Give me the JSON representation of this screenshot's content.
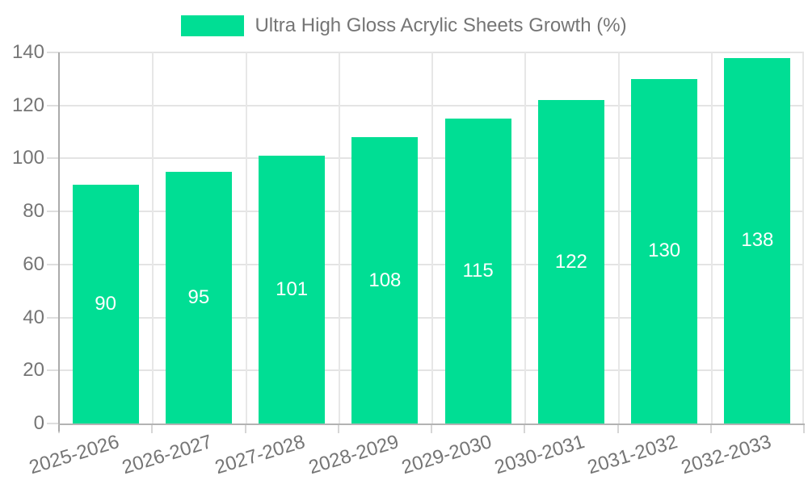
{
  "legend": {
    "label": "Ultra High Gloss Acrylic Sheets Growth (%)"
  },
  "chart_data": {
    "type": "bar",
    "title": "Ultra High Gloss Acrylic Sheets Growth (%)",
    "series_name": "Ultra High Gloss Acrylic Sheets Growth (%)",
    "categories": [
      "2025-2026",
      "2026-2027",
      "2027-2028",
      "2028-2029",
      "2029-2030",
      "2030-2031",
      "2031-2032",
      "2032-2033"
    ],
    "values": [
      90,
      95,
      101,
      108,
      115,
      122,
      130,
      138
    ],
    "xlabel": "",
    "ylabel": "",
    "ylim": [
      0,
      140
    ],
    "ytick_step": 20,
    "yticks": [
      0,
      20,
      40,
      60,
      80,
      100,
      120,
      140
    ],
    "grid": true,
    "legend_position": "top",
    "colors": {
      "bar": "#00de94",
      "value_label": "#ffffff",
      "axis_text": "#757575",
      "axis_line": "#ababab",
      "gridline": "#e4e4e4",
      "background": "#ffffff"
    }
  }
}
